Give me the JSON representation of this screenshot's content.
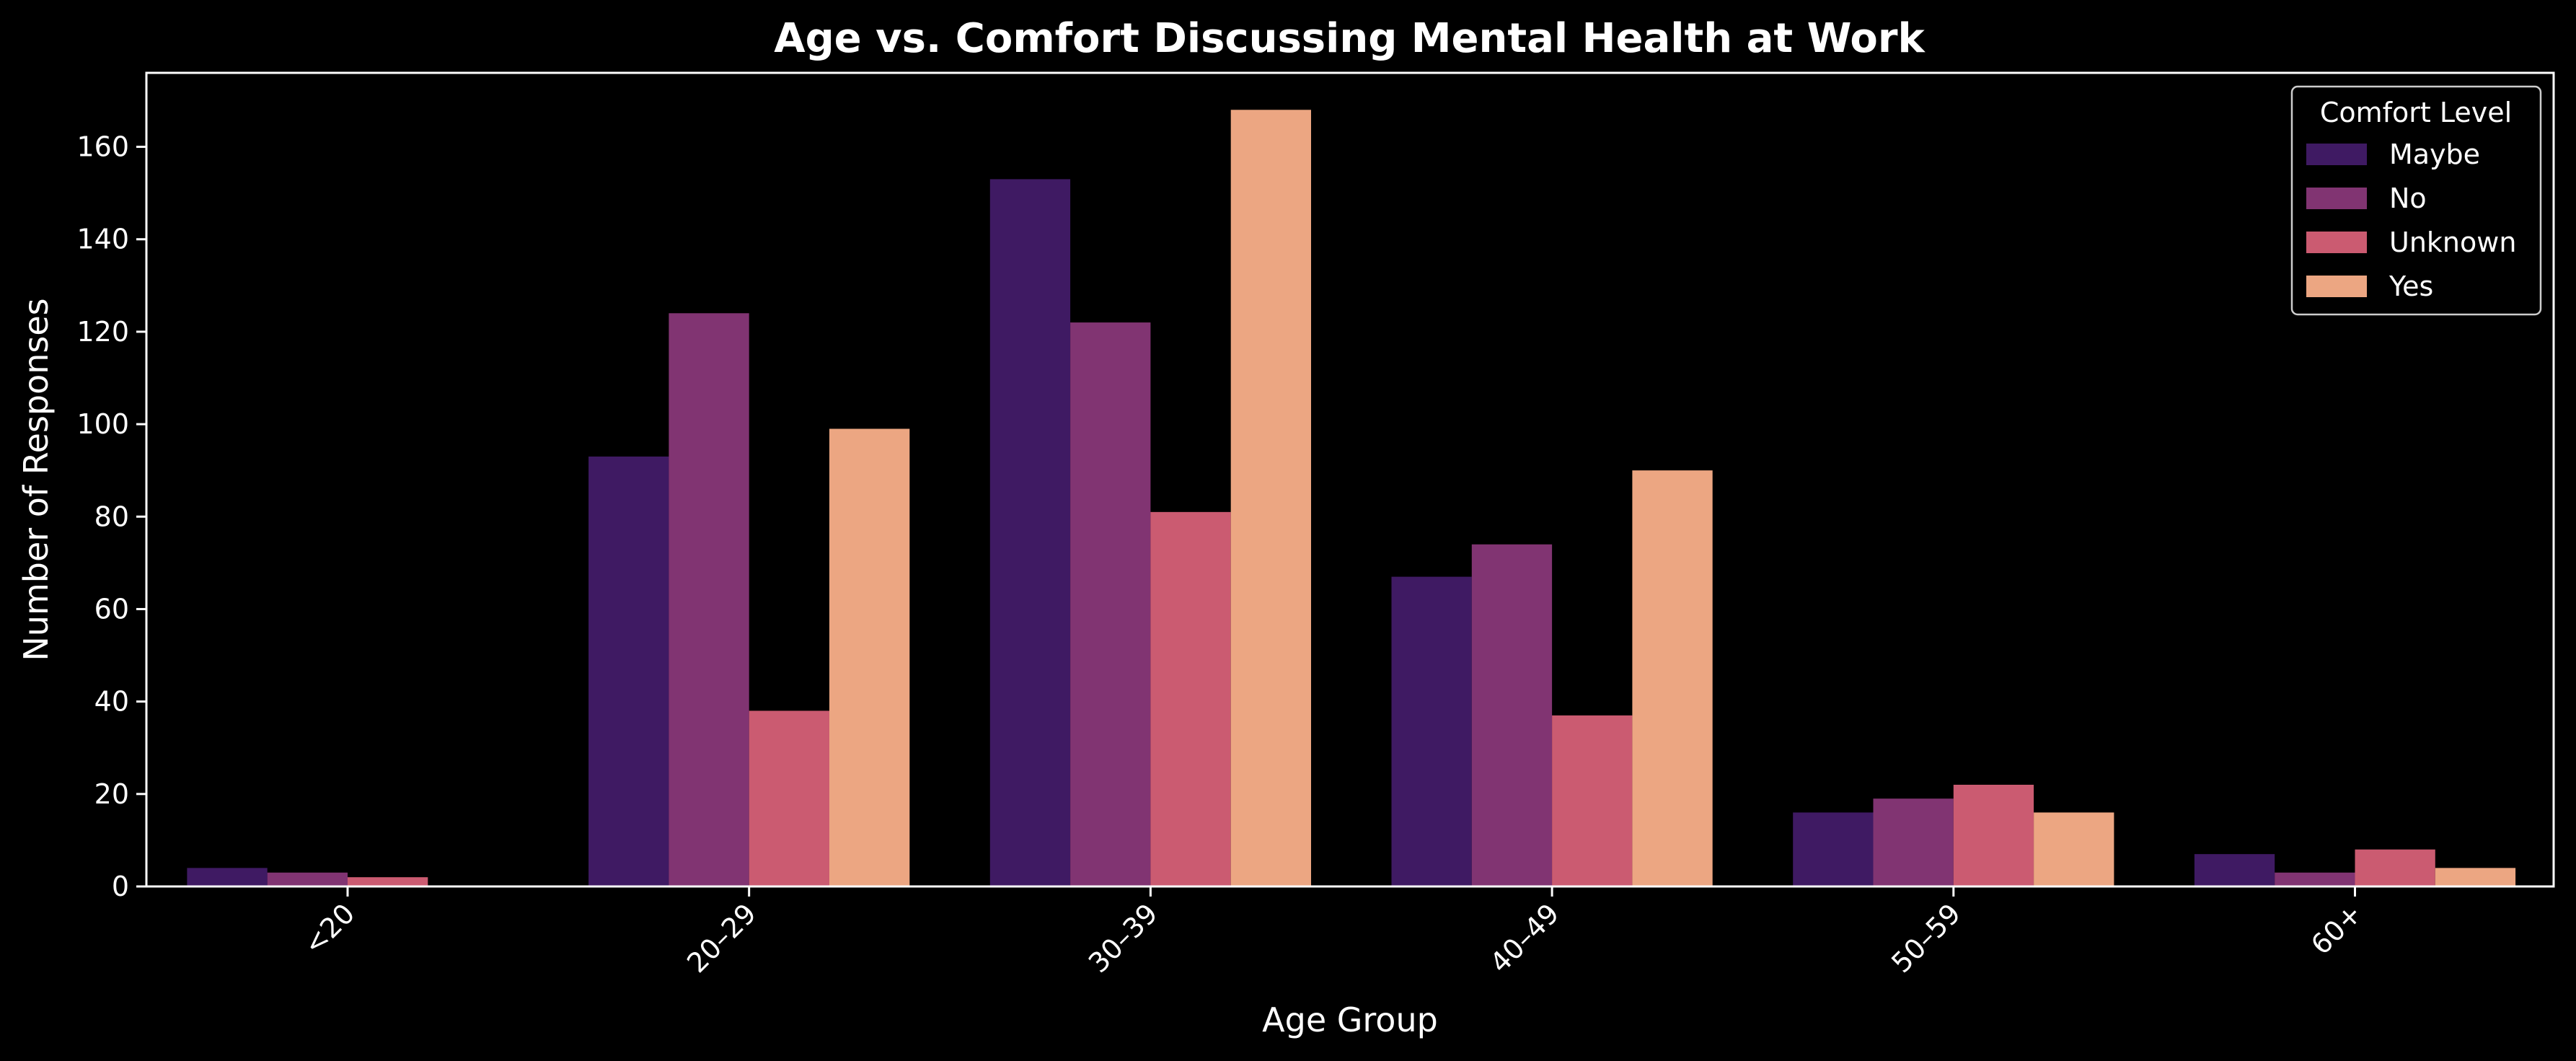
{
  "chart_data": {
    "type": "bar",
    "title": "Age vs. Comfort Discussing Mental Health at Work",
    "xlabel": "Age Group",
    "ylabel": "Number of Responses",
    "categories": [
      "<20",
      "20–29",
      "30–39",
      "40–49",
      "50–59",
      "60+"
    ],
    "series": [
      {
        "name": "Maybe",
        "color": "#3f1a63",
        "values": [
          4,
          93,
          153,
          67,
          16,
          7
        ]
      },
      {
        "name": "No",
        "color": "#813472",
        "values": [
          3,
          124,
          122,
          74,
          19,
          3
        ]
      },
      {
        "name": "Unknown",
        "color": "#cb5b71",
        "values": [
          2,
          38,
          81,
          37,
          22,
          8
        ]
      },
      {
        "name": "Yes",
        "color": "#eca682",
        "values": [
          0,
          99,
          168,
          90,
          16,
          4
        ]
      }
    ],
    "ylim": [
      0,
      176
    ],
    "yticks": [
      0,
      20,
      40,
      60,
      80,
      100,
      120,
      140,
      160
    ],
    "legend": {
      "title": "Comfort Level",
      "position": "top-right"
    },
    "grid": false,
    "background": "#000000"
  }
}
